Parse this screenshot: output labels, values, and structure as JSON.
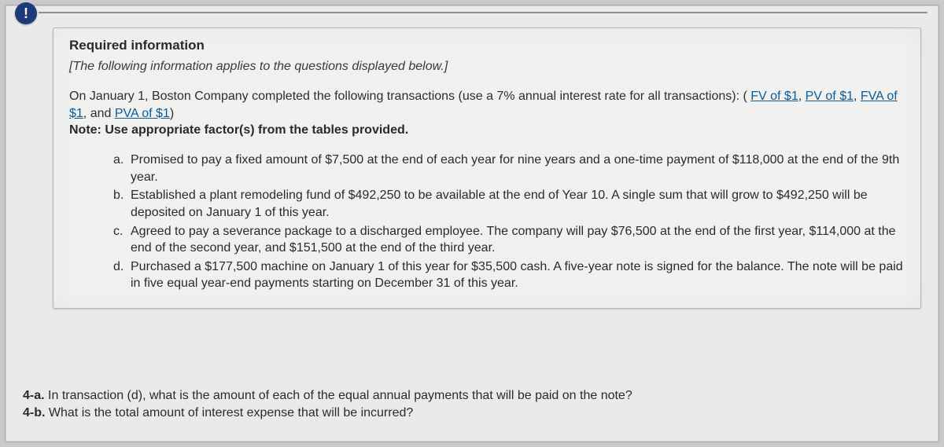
{
  "badge": {
    "glyph": "!"
  },
  "card": {
    "required_title": "Required information",
    "context_line": "[The following information applies to the questions displayed below.]",
    "intro_pre": "On January 1, Boston Company completed the following transactions (use a 7% annual interest rate for all transactions): (",
    "links": {
      "fv": "FV of $1",
      "pv": "PV of $1",
      "fva": "FVA of $1",
      "pva": "PVA of $1"
    },
    "intro_sep1": ", ",
    "intro_sep2": ", ",
    "intro_sep3": ", and ",
    "intro_post": ")",
    "note": "Note: Use appropriate factor(s) from the tables provided.",
    "items": [
      {
        "marker": "a.",
        "text": "Promised to pay a fixed amount of $7,500 at the end of each year for nine years and a one-time payment of $118,000 at the end of the 9th year."
      },
      {
        "marker": "b.",
        "text": "Established a plant remodeling fund of $492,250 to be available at the end of Year 10. A single sum that will grow to $492,250 will be deposited on January 1 of this year."
      },
      {
        "marker": "c.",
        "text": "Agreed to pay a severance package to a discharged employee. The company will pay $76,500 at the end of the first year, $114,000 at the end of the second year, and $151,500 at the end of the third year."
      },
      {
        "marker": "d.",
        "text": "Purchased a $177,500 machine on January 1 of this year for $35,500 cash. A five-year note is signed for the balance. The note will be paid in five equal year-end payments starting on December 31 of this year."
      }
    ]
  },
  "questions": [
    {
      "label": "4-a.",
      "text": " In transaction (d), what is the amount of each of the equal annual payments that will be paid on the note?"
    },
    {
      "label": "4-b.",
      "text": " What is the total amount of interest expense that will be incurred?"
    }
  ],
  "colors": {
    "page_bg": "#c8c9ca",
    "frame_bg": "#e9eaea",
    "card_bg": "#f2f2f1",
    "badge_bg": "#1f3a7a",
    "badge_fg": "#ffffff",
    "link": "#0b5c9a",
    "rule": "#8e8f90",
    "text": "#2b2b2b"
  },
  "typography": {
    "base_fontsize_pt": 12,
    "title_weight": 700,
    "note_weight": 700
  }
}
